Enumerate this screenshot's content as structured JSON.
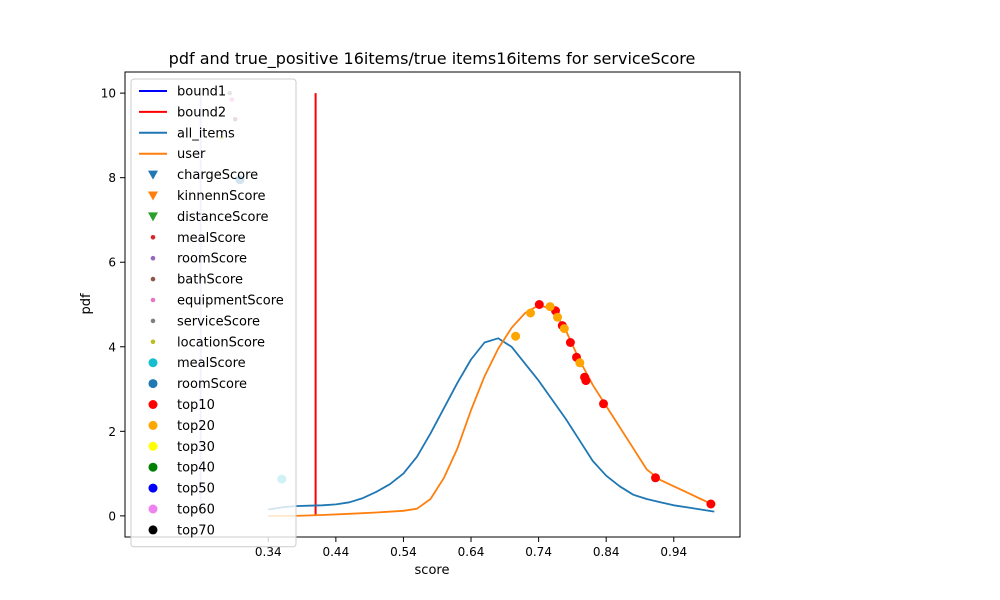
{
  "chart_data": {
    "type": "line",
    "title": "pdf and true_positive 16items/true items16items for serviceScore",
    "xlabel": "score",
    "ylabel": "pdf",
    "xlim": [
      0.128,
      1.038
    ],
    "ylim": [
      -0.5,
      10.5
    ],
    "x_ticks": [
      "0.34",
      "0.44",
      "0.54",
      "0.64",
      "0.74",
      "0.84",
      "0.94"
    ],
    "x_tick_values": [
      0.34,
      0.44,
      0.54,
      0.64,
      0.74,
      0.84,
      0.94
    ],
    "y_ticks": [
      "0",
      "2",
      "4",
      "6",
      "8",
      "10"
    ],
    "y_tick_values": [
      0,
      2,
      4,
      6,
      8,
      10
    ],
    "legend_position": "upper-left",
    "legend": [
      {
        "label": "bound1",
        "kind": "line",
        "color": "#0000ff"
      },
      {
        "label": "bound2",
        "kind": "line",
        "color": "#ff0000"
      },
      {
        "label": "all_items",
        "kind": "line",
        "color": "#1f77b4"
      },
      {
        "label": "user",
        "kind": "line",
        "color": "#ff7f0e"
      },
      {
        "label": "chargeScore",
        "kind": "triangle",
        "color": "#1f77b4"
      },
      {
        "label": "kinnennScore",
        "kind": "triangle",
        "color": "#ff7f0e"
      },
      {
        "label": "distanceScore",
        "kind": "triangle",
        "color": "#2ca02c"
      },
      {
        "label": "mealScore",
        "kind": "smalldot",
        "color": "#d62728"
      },
      {
        "label": "roomScore",
        "kind": "smalldot",
        "color": "#9467bd"
      },
      {
        "label": "bathScore",
        "kind": "smalldot",
        "color": "#8c564b"
      },
      {
        "label": "equipmentScore",
        "kind": "smalldot",
        "color": "#e377c2"
      },
      {
        "label": "serviceScore",
        "kind": "smalldot",
        "color": "#7f7f7f"
      },
      {
        "label": "locationScore",
        "kind": "smalldot",
        "color": "#bcbd22"
      },
      {
        "label": "mealScore",
        "kind": "dot",
        "color": "#17becf"
      },
      {
        "label": "roomScore",
        "kind": "dot",
        "color": "#1f77b4"
      },
      {
        "label": "top10",
        "kind": "dot",
        "color": "#ff0000"
      },
      {
        "label": "top20",
        "kind": "dot",
        "color": "#ffa500"
      },
      {
        "label": "top30",
        "kind": "dot",
        "color": "#ffff00"
      },
      {
        "label": "top40",
        "kind": "dot",
        "color": "#008000"
      },
      {
        "label": "top50",
        "kind": "dot",
        "color": "#0000ff"
      },
      {
        "label": "top60",
        "kind": "dot",
        "color": "#ee82ee"
      },
      {
        "label": "top70",
        "kind": "dot",
        "color": "#000000"
      }
    ],
    "series": [
      {
        "name": "bound1",
        "kind": "vline",
        "color": "#0000ff",
        "opacity": 0.25,
        "x": [
          0.24,
          0.24
        ],
        "y": [
          0,
          10
        ]
      },
      {
        "name": "bound2",
        "kind": "vline",
        "color": "#ff0000",
        "opacity": 1,
        "x": [
          0.41,
          0.41
        ],
        "y": [
          0,
          10
        ]
      },
      {
        "name": "all_items",
        "kind": "line",
        "color": "#1f77b4",
        "x": [
          0.34,
          0.36,
          0.38,
          0.4,
          0.42,
          0.44,
          0.46,
          0.48,
          0.5,
          0.52,
          0.54,
          0.56,
          0.58,
          0.6,
          0.62,
          0.64,
          0.66,
          0.68,
          0.7,
          0.72,
          0.74,
          0.76,
          0.78,
          0.8,
          0.82,
          0.84,
          0.86,
          0.88,
          0.9,
          0.92,
          0.94,
          0.96,
          0.98,
          1.0
        ],
        "y": [
          0.15,
          0.2,
          0.23,
          0.24,
          0.25,
          0.27,
          0.32,
          0.42,
          0.57,
          0.75,
          1.0,
          1.4,
          1.95,
          2.55,
          3.15,
          3.7,
          4.1,
          4.2,
          4.0,
          3.6,
          3.2,
          2.75,
          2.3,
          1.8,
          1.3,
          0.95,
          0.7,
          0.5,
          0.4,
          0.32,
          0.25,
          0.2,
          0.15,
          0.1
        ]
      },
      {
        "name": "user",
        "kind": "line",
        "color": "#ff7f0e",
        "x": [
          0.34,
          0.38,
          0.42,
          0.46,
          0.5,
          0.54,
          0.56,
          0.58,
          0.6,
          0.62,
          0.64,
          0.66,
          0.68,
          0.7,
          0.72,
          0.74,
          0.76,
          0.78,
          0.8,
          0.82,
          0.84,
          0.86,
          0.88,
          0.9,
          0.92,
          0.94,
          0.96,
          0.98,
          1.0
        ],
        "y": [
          0.0,
          0.0,
          0.02,
          0.05,
          0.08,
          0.12,
          0.17,
          0.4,
          0.9,
          1.6,
          2.5,
          3.3,
          3.95,
          4.45,
          4.8,
          4.98,
          4.9,
          4.4,
          3.7,
          3.1,
          2.6,
          2.1,
          1.6,
          1.1,
          0.85,
          0.7,
          0.55,
          0.4,
          0.25
        ]
      }
    ],
    "scatter": [
      {
        "name": "serviceScore",
        "kind": "smalldot",
        "color": "#7f7f7f",
        "points": [
          [
            0.283,
            10.0
          ]
        ]
      },
      {
        "name": "equipmentScore",
        "kind": "smalldot",
        "color": "#e377c2",
        "points": [
          [
            0.286,
            9.85
          ]
        ]
      },
      {
        "name": "bathScore",
        "kind": "smalldot",
        "color": "#8c564b",
        "points": [
          [
            0.291,
            9.38
          ]
        ]
      },
      {
        "name": "locationScore",
        "kind": "smalldot",
        "color": "#bcbd22",
        "points": [
          [
            0.271,
            8.95
          ]
        ]
      },
      {
        "name": "roomScore",
        "kind": "dot",
        "color": "#1f77b4",
        "points": [
          [
            0.298,
            7.95
          ]
        ]
      },
      {
        "name": "mealScore",
        "kind": "dot",
        "color": "#17becf",
        "points": [
          [
            0.36,
            0.87
          ]
        ]
      },
      {
        "name": "top10",
        "kind": "dot",
        "color": "#ff0000",
        "points": [
          [
            0.741,
            5.0
          ],
          [
            0.765,
            4.85
          ],
          [
            0.775,
            4.5
          ],
          [
            0.787,
            4.1
          ],
          [
            0.796,
            3.75
          ],
          [
            0.808,
            3.28
          ],
          [
            0.81,
            3.2
          ],
          [
            0.836,
            2.65
          ],
          [
            0.913,
            0.9
          ],
          [
            0.995,
            0.28
          ]
        ]
      },
      {
        "name": "top20",
        "kind": "dot",
        "color": "#ffa500",
        "points": [
          [
            0.706,
            4.25
          ],
          [
            0.728,
            4.8
          ],
          [
            0.757,
            4.95
          ],
          [
            0.768,
            4.7
          ],
          [
            0.778,
            4.43
          ],
          [
            0.801,
            3.62
          ]
        ]
      }
    ]
  }
}
